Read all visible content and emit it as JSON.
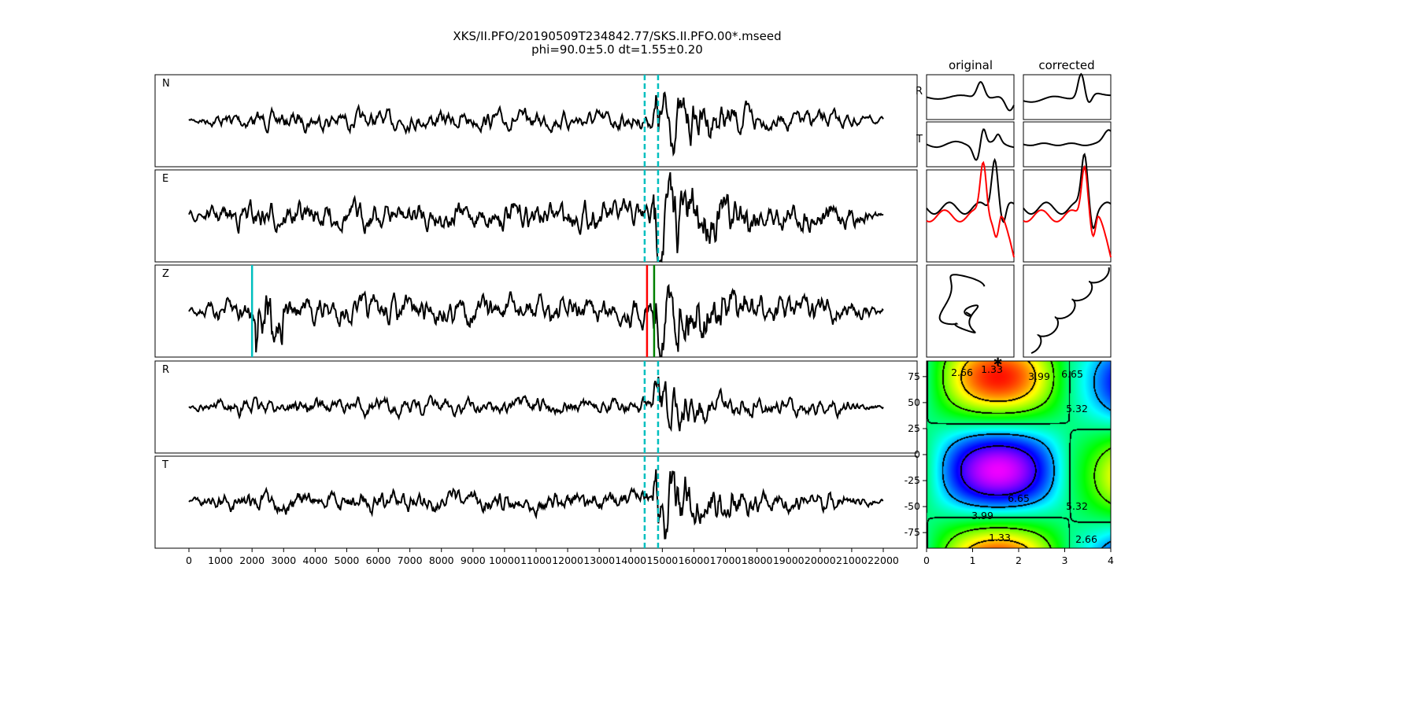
{
  "chart_data": {
    "type": "line",
    "title": "XKS/II.PFO/20190509T234842.77/SKS.II.PFO.00*.mseed",
    "subtitle": "phi=90.0±5.0 dt=1.55±0.20",
    "traces": [
      {
        "name": "N",
        "amp": 0.35,
        "burst": 1.3
      },
      {
        "name": "E",
        "amp": 0.55,
        "burst": 1.1
      },
      {
        "name": "Z",
        "amp": 0.55,
        "burst": 1.0
      },
      {
        "name": "R",
        "amp": 0.32,
        "burst": 0.9
      },
      {
        "name": "T",
        "amp": 0.4,
        "burst": 1.3
      }
    ],
    "xlim": [
      -1075,
      23075
    ],
    "xticks": [
      0,
      1000,
      2000,
      3000,
      4000,
      5000,
      6000,
      7000,
      8000,
      9000,
      10000,
      11000,
      12000,
      13000,
      14000,
      15000,
      16000,
      17000,
      18000,
      19000,
      20000,
      21000,
      22000
    ],
    "window_markers": [
      14440,
      14865
    ],
    "z_markers": [
      {
        "x": 2000,
        "color": "#00bfbf"
      },
      {
        "x": 14515,
        "color": "#ff0000"
      },
      {
        "x": 14740,
        "color": "#008000"
      }
    ],
    "small_panels": {
      "column_titles": [
        "original",
        "corrected"
      ],
      "row_labels": [
        "R",
        "T"
      ]
    },
    "error_surface": {
      "xlim": [
        0,
        4
      ],
      "ylim": [
        -90,
        90
      ],
      "xticks": [
        0,
        1,
        2,
        3,
        4
      ],
      "yticks": [
        75,
        50,
        25,
        0,
        -25,
        -50,
        -75
      ],
      "contour_levels": [
        "1.33",
        "2.66",
        "3.99",
        "5.32",
        "6.65"
      ],
      "best": {
        "dt": 1.55,
        "phi": 90.0
      }
    },
    "colors": {
      "trace": "#000000",
      "window": "#00bfbf",
      "red": "#ff0000"
    }
  }
}
